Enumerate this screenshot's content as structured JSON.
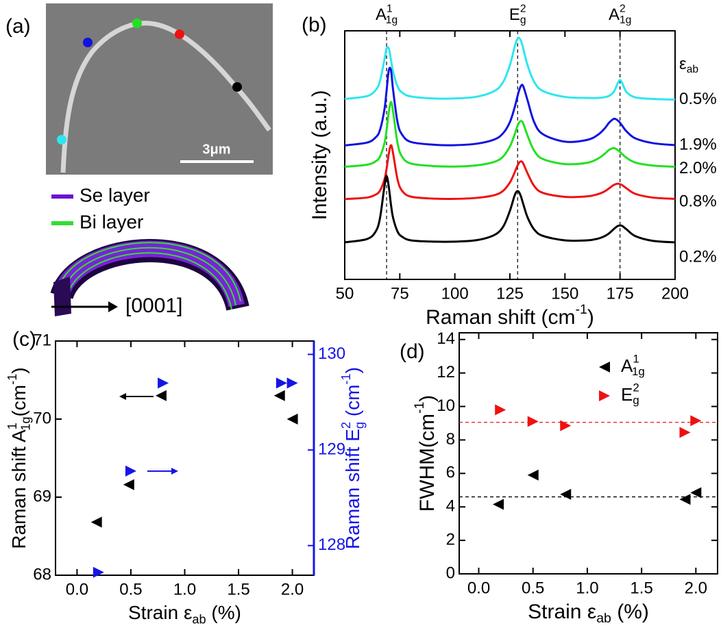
{
  "image_panel": {
    "label": "(a)",
    "scale_bar": "3μm",
    "legend": [
      "Se layer",
      "Bi layer"
    ],
    "direction": "[0001]"
  },
  "chart_data": [
    {
      "type": "line",
      "panel": "(b)",
      "x_label": [
        {
          "text": "Raman shift (cm"
        },
        {
          "sup": "-1"
        },
        {
          "text": ")"
        }
      ],
      "y_label": "Intensity (a.u.)",
      "xlim": [
        50,
        200
      ],
      "xticks": [
        50,
        75,
        100,
        125,
        150,
        175,
        200
      ],
      "ylim": [
        0,
        100
      ],
      "legend_title": [
        {
          "text": "ε"
        },
        {
          "sub": "ab"
        }
      ],
      "peaks": [
        {
          "x": 69,
          "label": [
            {
              "text": "A"
            },
            {
              "sup": "1"
            },
            {
              "sub": "1g"
            }
          ]
        },
        {
          "x": 128.5,
          "label": [
            {
              "text": "E"
            },
            {
              "sup": "2"
            },
            {
              "sub": "g"
            }
          ]
        },
        {
          "x": 175,
          "label": [
            {
              "text": "A"
            },
            {
              "sup": "2"
            },
            {
              "sub": "1g"
            }
          ]
        }
      ],
      "x": [
        50,
        60,
        64,
        66,
        68,
        69,
        70,
        71,
        72,
        74,
        76,
        80,
        90,
        100,
        110,
        118,
        122,
        125,
        127,
        128,
        129,
        130,
        131,
        133,
        136,
        140,
        150,
        160,
        165,
        168,
        170,
        172,
        173,
        174,
        175,
        176,
        178,
        182,
        190,
        200
      ],
      "series": [
        {
          "name": "0.5%",
          "color": "#2ee6f0",
          "values": [
            72.6,
            73.7,
            76.1,
            79.8,
            88.3,
            92.9,
            92.9,
            88.3,
            83.4,
            77.6,
            75.2,
            73.6,
            72.8,
            72.8,
            73.5,
            75.8,
            79.5,
            86.2,
            93.1,
            96.0,
            97.2,
            96.0,
            93.1,
            86.2,
            79.5,
            75.8,
            73.4,
            73.0,
            73.0,
            73.3,
            73.8,
            75.3,
            76.9,
            79.0,
            80.2,
            79.0,
            75.3,
            73.2,
            72.6,
            72.3
          ]
        },
        {
          "name": "1.9%",
          "color": "#1212e0",
          "values": [
            53.9,
            55.0,
            57.1,
            60.1,
            68.2,
            75.9,
            84.1,
            84.1,
            75.9,
            63.1,
            58.3,
            55.3,
            54.2,
            54.0,
            54.6,
            56.3,
            58.9,
            63.3,
            68.7,
            72.1,
            75.5,
            77.8,
            77.8,
            72.1,
            63.3,
            58.4,
            55.4,
            56.1,
            58.2,
            60.7,
            63.0,
            64.5,
            64.5,
            63.9,
            63.0,
            61.8,
            59.5,
            56.7,
            54.8,
            54.0
          ]
        },
        {
          "name": "2.0%",
          "color": "#22e022",
          "values": [
            45.3,
            46.1,
            47.5,
            49.4,
            54.7,
            60.0,
            67.2,
            71.4,
            67.2,
            54.7,
            49.4,
            46.6,
            45.6,
            45.4,
            45.9,
            47.3,
            49.5,
            53.5,
            57.9,
            60.6,
            62.8,
            63.7,
            62.8,
            57.9,
            51.8,
            48.4,
            46.4,
            46.9,
            48.6,
            50.5,
            52.1,
            52.8,
            52.6,
            52.0,
            51.3,
            50.4,
            48.9,
            47.0,
            45.8,
            45.3
          ]
        },
        {
          "name": "0.8%",
          "color": "#ee1111",
          "values": [
            32.3,
            32.9,
            34.1,
            35.7,
            40.1,
            44.5,
            50.5,
            54.0,
            50.5,
            40.1,
            35.7,
            33.3,
            32.5,
            32.4,
            32.8,
            33.9,
            35.7,
            39.0,
            42.7,
            44.9,
            46.7,
            47.5,
            46.7,
            42.7,
            37.6,
            34.8,
            33.2,
            33.4,
            34.3,
            35.4,
            36.6,
            37.9,
            38.3,
            38.5,
            38.3,
            37.9,
            36.6,
            34.4,
            32.9,
            32.4
          ]
        },
        {
          "name": "0.2%",
          "color": "#000000",
          "values": [
            14.9,
            16.2,
            19.2,
            24.6,
            37.3,
            41.6,
            37.3,
            30.0,
            24.6,
            19.2,
            17.2,
            15.7,
            15.2,
            15.2,
            15.8,
            17.9,
            21.3,
            27.6,
            33.4,
            35.3,
            35.3,
            33.4,
            30.5,
            25.0,
            20.1,
            17.5,
            15.7,
            15.7,
            16.4,
            17.4,
            18.5,
            20.1,
            20.9,
            21.5,
            21.7,
            21.5,
            20.1,
            17.4,
            15.5,
            14.9
          ]
        }
      ]
    },
    {
      "type": "scatter",
      "panel": "(c)",
      "x_label": [
        {
          "text": "Strain ε"
        },
        {
          "sub": "ab"
        },
        {
          "text": " (%)"
        }
      ],
      "y_label": [
        {
          "text": "Raman shift A"
        },
        {
          "sup": "1"
        },
        {
          "sub": "1g"
        },
        {
          "text": "(cm"
        },
        {
          "sup": "-1"
        },
        {
          "text": ")"
        }
      ],
      "y2_label": [
        {
          "text": "Raman shift E"
        },
        {
          "sup": "2"
        },
        {
          "sub": "g"
        },
        {
          "text": " (cm"
        },
        {
          "sup": "-1"
        },
        {
          "text": ")"
        }
      ],
      "y2_color": "#1515e6",
      "xlim": [
        -0.2,
        2.2
      ],
      "xticks": [
        {
          "value": 0,
          "label": "0.0"
        },
        {
          "value": 0.5,
          "label": "0.5"
        },
        {
          "value": 1,
          "label": "1.0"
        },
        {
          "value": 1.5,
          "label": "1.5"
        },
        {
          "value": 2,
          "label": "2.0"
        }
      ],
      "ylim": [
        68,
        71
      ],
      "yticks": [
        68,
        69,
        70,
        71
      ],
      "y2lim": [
        127.69,
        130.14
      ],
      "y2ticks": [
        128,
        129,
        130
      ],
      "series": [
        {
          "color": "#000000",
          "marker": "triangle-left",
          "x": [
            0.18,
            0.48,
            0.78,
            1.88,
            2.0
          ],
          "values": [
            68.68,
            69.16,
            70.3,
            70.3,
            70.0
          ]
        },
        {
          "color": "#1515e6",
          "marker": "triangle-right",
          "axis": "y2",
          "x": [
            0.2,
            0.5,
            0.8,
            1.9,
            2.0
          ],
          "values": [
            127.72,
            128.78,
            129.7,
            129.7,
            129.7
          ]
        }
      ]
    },
    {
      "type": "scatter",
      "panel": "(d)",
      "x_label": [
        {
          "text": "Strain ε"
        },
        {
          "sub": "ab"
        },
        {
          "text": " (%)"
        }
      ],
      "y_label": [
        {
          "text": "FWHM(cm"
        },
        {
          "sup": "-1"
        },
        {
          "text": ")"
        }
      ],
      "xlim": [
        -0.18,
        2.2
      ],
      "xticks": [
        {
          "value": 0,
          "label": "0.0"
        },
        {
          "value": 0.5,
          "label": "0.5"
        },
        {
          "value": 1,
          "label": "1.0"
        },
        {
          "value": 1.5,
          "label": "1.5"
        },
        {
          "value": 2,
          "label": "2.0"
        }
      ],
      "ylim": [
        0,
        14.4
      ],
      "yticks": [
        0,
        2,
        4,
        6,
        8,
        10,
        12,
        14
      ],
      "legend": "top-right",
      "series": [
        {
          "name": [
            {
              "text": "A"
            },
            {
              "sup": "1"
            },
            {
              "sub": "1g"
            }
          ],
          "color": "#000000",
          "marker": "triangle-left",
          "x": [
            0.18,
            0.5,
            0.8,
            1.9,
            2.0
          ],
          "values": [
            4.15,
            5.9,
            4.75,
            4.45,
            4.85
          ],
          "hline": 4.6
        },
        {
          "name": [
            {
              "text": "E"
            },
            {
              "sup": "2"
            },
            {
              "sub": "g"
            }
          ],
          "color": "#ee1111",
          "marker": "triangle-right",
          "x": [
            0.2,
            0.5,
            0.8,
            1.9,
            2.0
          ],
          "values": [
            9.8,
            9.1,
            8.85,
            8.45,
            9.15
          ],
          "hline": 9.05
        }
      ]
    }
  ]
}
